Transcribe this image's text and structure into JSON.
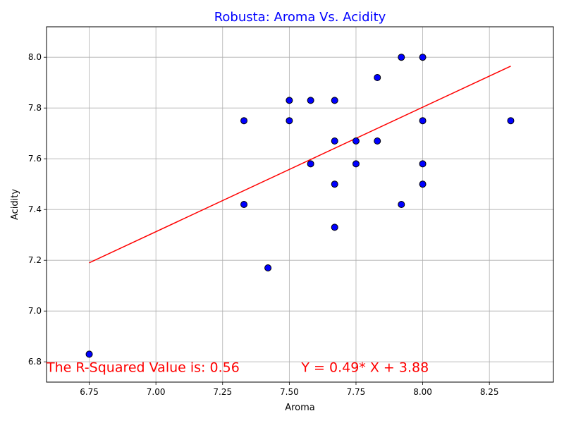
{
  "chart_data": {
    "type": "scatter",
    "title": "Robusta: Aroma Vs. Acidity",
    "title_color": "#0000ff",
    "xlabel": "Aroma",
    "ylabel": "Acidity",
    "xlim": [
      6.59,
      8.49
    ],
    "ylim": [
      6.72,
      8.12
    ],
    "xticks": [
      6.75,
      7.0,
      7.25,
      7.5,
      7.75,
      8.0,
      8.25
    ],
    "xtick_labels": [
      "6.75",
      "7.00",
      "7.25",
      "7.50",
      "7.75",
      "8.00",
      "8.25"
    ],
    "yticks": [
      6.8,
      7.0,
      7.2,
      7.4,
      7.6,
      7.8,
      8.0
    ],
    "ytick_labels": [
      "6.8",
      "7.0",
      "7.2",
      "7.4",
      "7.6",
      "7.8",
      "8.0"
    ],
    "grid": true,
    "marker_color": "#0000ff",
    "marker_edge_color": "#000000",
    "points": [
      {
        "x": 6.75,
        "y": 6.83
      },
      {
        "x": 7.33,
        "y": 7.42
      },
      {
        "x": 7.33,
        "y": 7.75
      },
      {
        "x": 7.42,
        "y": 7.17
      },
      {
        "x": 7.5,
        "y": 7.83
      },
      {
        "x": 7.5,
        "y": 7.75
      },
      {
        "x": 7.58,
        "y": 7.83
      },
      {
        "x": 7.58,
        "y": 7.58
      },
      {
        "x": 7.67,
        "y": 7.83
      },
      {
        "x": 7.67,
        "y": 7.67
      },
      {
        "x": 7.67,
        "y": 7.5
      },
      {
        "x": 7.67,
        "y": 7.33
      },
      {
        "x": 7.75,
        "y": 7.67
      },
      {
        "x": 7.75,
        "y": 7.58
      },
      {
        "x": 7.83,
        "y": 7.92
      },
      {
        "x": 7.83,
        "y": 7.67
      },
      {
        "x": 7.92,
        "y": 8.0
      },
      {
        "x": 7.92,
        "y": 7.42
      },
      {
        "x": 8.0,
        "y": 8.0
      },
      {
        "x": 8.0,
        "y": 7.75
      },
      {
        "x": 8.0,
        "y": 7.58
      },
      {
        "x": 8.0,
        "y": 7.5
      },
      {
        "x": 8.33,
        "y": 7.75
      }
    ],
    "regression": {
      "slope": 0.49,
      "intercept": 3.88,
      "x_start": 6.75,
      "x_end": 8.33,
      "y_start": 7.19,
      "y_end": 7.965,
      "color": "#ff0000"
    },
    "annotations": [
      {
        "text": "The R-Squared Value is: 0.56",
        "x": 6.59,
        "y": 6.76,
        "color": "#ff0000"
      },
      {
        "text": "Y = 0.49* X + 3.88",
        "x": 7.545,
        "y": 6.76,
        "color": "#ff0000"
      }
    ]
  }
}
